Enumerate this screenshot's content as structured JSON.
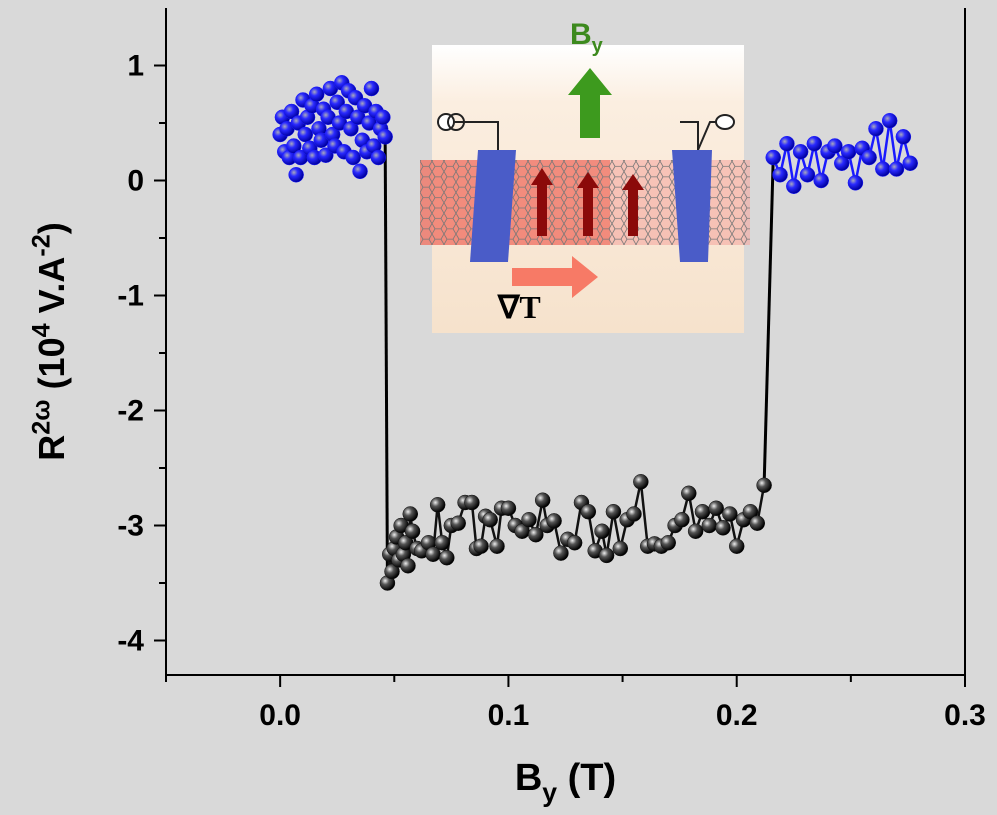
{
  "chart_data": {
    "type": "scatter",
    "x_label": [
      {
        "text": "B"
      },
      {
        "text": "y",
        "sub": true
      },
      {
        "text": " (T)"
      }
    ],
    "y_label": [
      {
        "text": "R"
      },
      {
        "text": "2ω",
        "sup": true
      },
      {
        "text": " (10"
      },
      {
        "text": "4",
        "sup": true
      },
      {
        "text": " V.A"
      },
      {
        "text": "-2",
        "sup": true
      },
      {
        "text": ")"
      }
    ],
    "annotations": [
      {
        "text": "B",
        "sub": "y"
      },
      {
        "text": "∇T"
      }
    ],
    "xlim": [
      -0.05,
      0.3
    ],
    "ylim": [
      -4.3,
      1.5
    ],
    "xticks": [
      {
        "value": 0,
        "label": "0.0"
      },
      0.1,
      0.2,
      0.3
    ],
    "yticks": [
      1,
      0,
      -1,
      -2,
      -3,
      -4
    ],
    "xminor_ticks": [
      -0.05,
      0.05,
      0.15,
      0.25
    ],
    "yminor_ticks": [
      0.5,
      -0.5,
      -1.5,
      -2.5,
      -3.5
    ],
    "series": [
      {
        "color": "#1a1aff",
        "line": false,
        "x": [
          0.0,
          0.001,
          0.002,
          0.003,
          0.004,
          0.005,
          0.006,
          0.007,
          0.008,
          0.009,
          0.01,
          0.011,
          0.012,
          0.013,
          0.014,
          0.015,
          0.016,
          0.017,
          0.018,
          0.019,
          0.02,
          0.021,
          0.022,
          0.023,
          0.024,
          0.025,
          0.026,
          0.027,
          0.028,
          0.029,
          0.03,
          0.031,
          0.032,
          0.033,
          0.034,
          0.035,
          0.036,
          0.037,
          0.038,
          0.039,
          0.04,
          0.041,
          0.042,
          0.043,
          0.044,
          0.045,
          0.046
        ],
        "values": [
          0.4,
          0.55,
          0.25,
          0.45,
          0.2,
          0.6,
          0.3,
          0.05,
          0.5,
          0.2,
          0.7,
          0.4,
          0.55,
          0.28,
          0.65,
          0.2,
          0.75,
          0.45,
          0.35,
          0.62,
          0.22,
          0.55,
          0.8,
          0.4,
          0.3,
          0.68,
          0.5,
          0.85,
          0.25,
          0.6,
          0.78,
          0.45,
          0.2,
          0.72,
          0.55,
          0.08,
          0.35,
          0.65,
          0.25,
          0.5,
          0.8,
          0.3,
          0.6,
          0.2,
          0.45,
          0.55,
          0.38
        ]
      },
      {
        "color": "#111111",
        "line": true,
        "x": [
          0.047,
          0.048,
          0.049,
          0.05,
          0.051,
          0.052,
          0.053,
          0.054,
          0.055,
          0.056,
          0.057,
          0.058,
          0.06,
          0.062,
          0.065,
          0.067,
          0.069,
          0.071,
          0.073,
          0.075,
          0.078,
          0.081,
          0.084,
          0.086,
          0.088,
          0.09,
          0.092,
          0.095,
          0.097,
          0.1,
          0.103,
          0.106,
          0.109,
          0.112,
          0.115,
          0.117,
          0.12,
          0.123,
          0.126,
          0.129,
          0.132,
          0.135,
          0.138,
          0.141,
          0.143,
          0.146,
          0.149,
          0.152,
          0.155,
          0.158,
          0.161,
          0.164,
          0.167,
          0.17,
          0.173,
          0.176,
          0.179,
          0.182,
          0.185,
          0.188,
          0.191,
          0.194,
          0.197,
          0.2,
          0.203,
          0.206,
          0.209,
          0.212
        ],
        "values": [
          -3.5,
          -3.25,
          -3.4,
          -3.2,
          -3.1,
          -3.3,
          -3.0,
          -3.25,
          -3.15,
          -3.35,
          -2.9,
          -3.05,
          -3.2,
          -3.22,
          -3.15,
          -3.25,
          -2.82,
          -3.15,
          -3.28,
          -3.0,
          -2.98,
          -2.8,
          -2.8,
          -3.2,
          -3.18,
          -2.92,
          -2.95,
          -3.18,
          -2.85,
          -2.85,
          -3.0,
          -3.05,
          -2.95,
          -3.08,
          -2.78,
          -3.0,
          -2.96,
          -3.24,
          -3.12,
          -3.15,
          -2.8,
          -2.88,
          -3.22,
          -3.05,
          -3.26,
          -2.88,
          -3.2,
          -2.95,
          -2.9,
          -2.62,
          -3.18,
          -3.16,
          -3.18,
          -3.15,
          -3.0,
          -2.95,
          -2.72,
          -3.05,
          -2.88,
          -3.0,
          -2.85,
          -3.02,
          -2.9,
          -3.18,
          -2.95,
          -2.88,
          -2.98,
          -2.65
        ]
      },
      {
        "color": "#1a1aff",
        "line": true,
        "x": [
          0.216,
          0.219,
          0.222,
          0.225,
          0.228,
          0.231,
          0.234,
          0.237,
          0.24,
          0.243,
          0.246,
          0.249,
          0.252,
          0.255,
          0.258,
          0.261,
          0.264,
          0.267,
          0.27,
          0.273,
          0.276
        ],
        "values": [
          0.2,
          0.05,
          0.32,
          -0.05,
          0.25,
          0.05,
          0.32,
          0.0,
          0.25,
          0.3,
          0.15,
          0.25,
          -0.02,
          0.28,
          0.2,
          0.45,
          0.1,
          0.52,
          0.1,
          0.38,
          0.15
        ]
      }
    ]
  }
}
